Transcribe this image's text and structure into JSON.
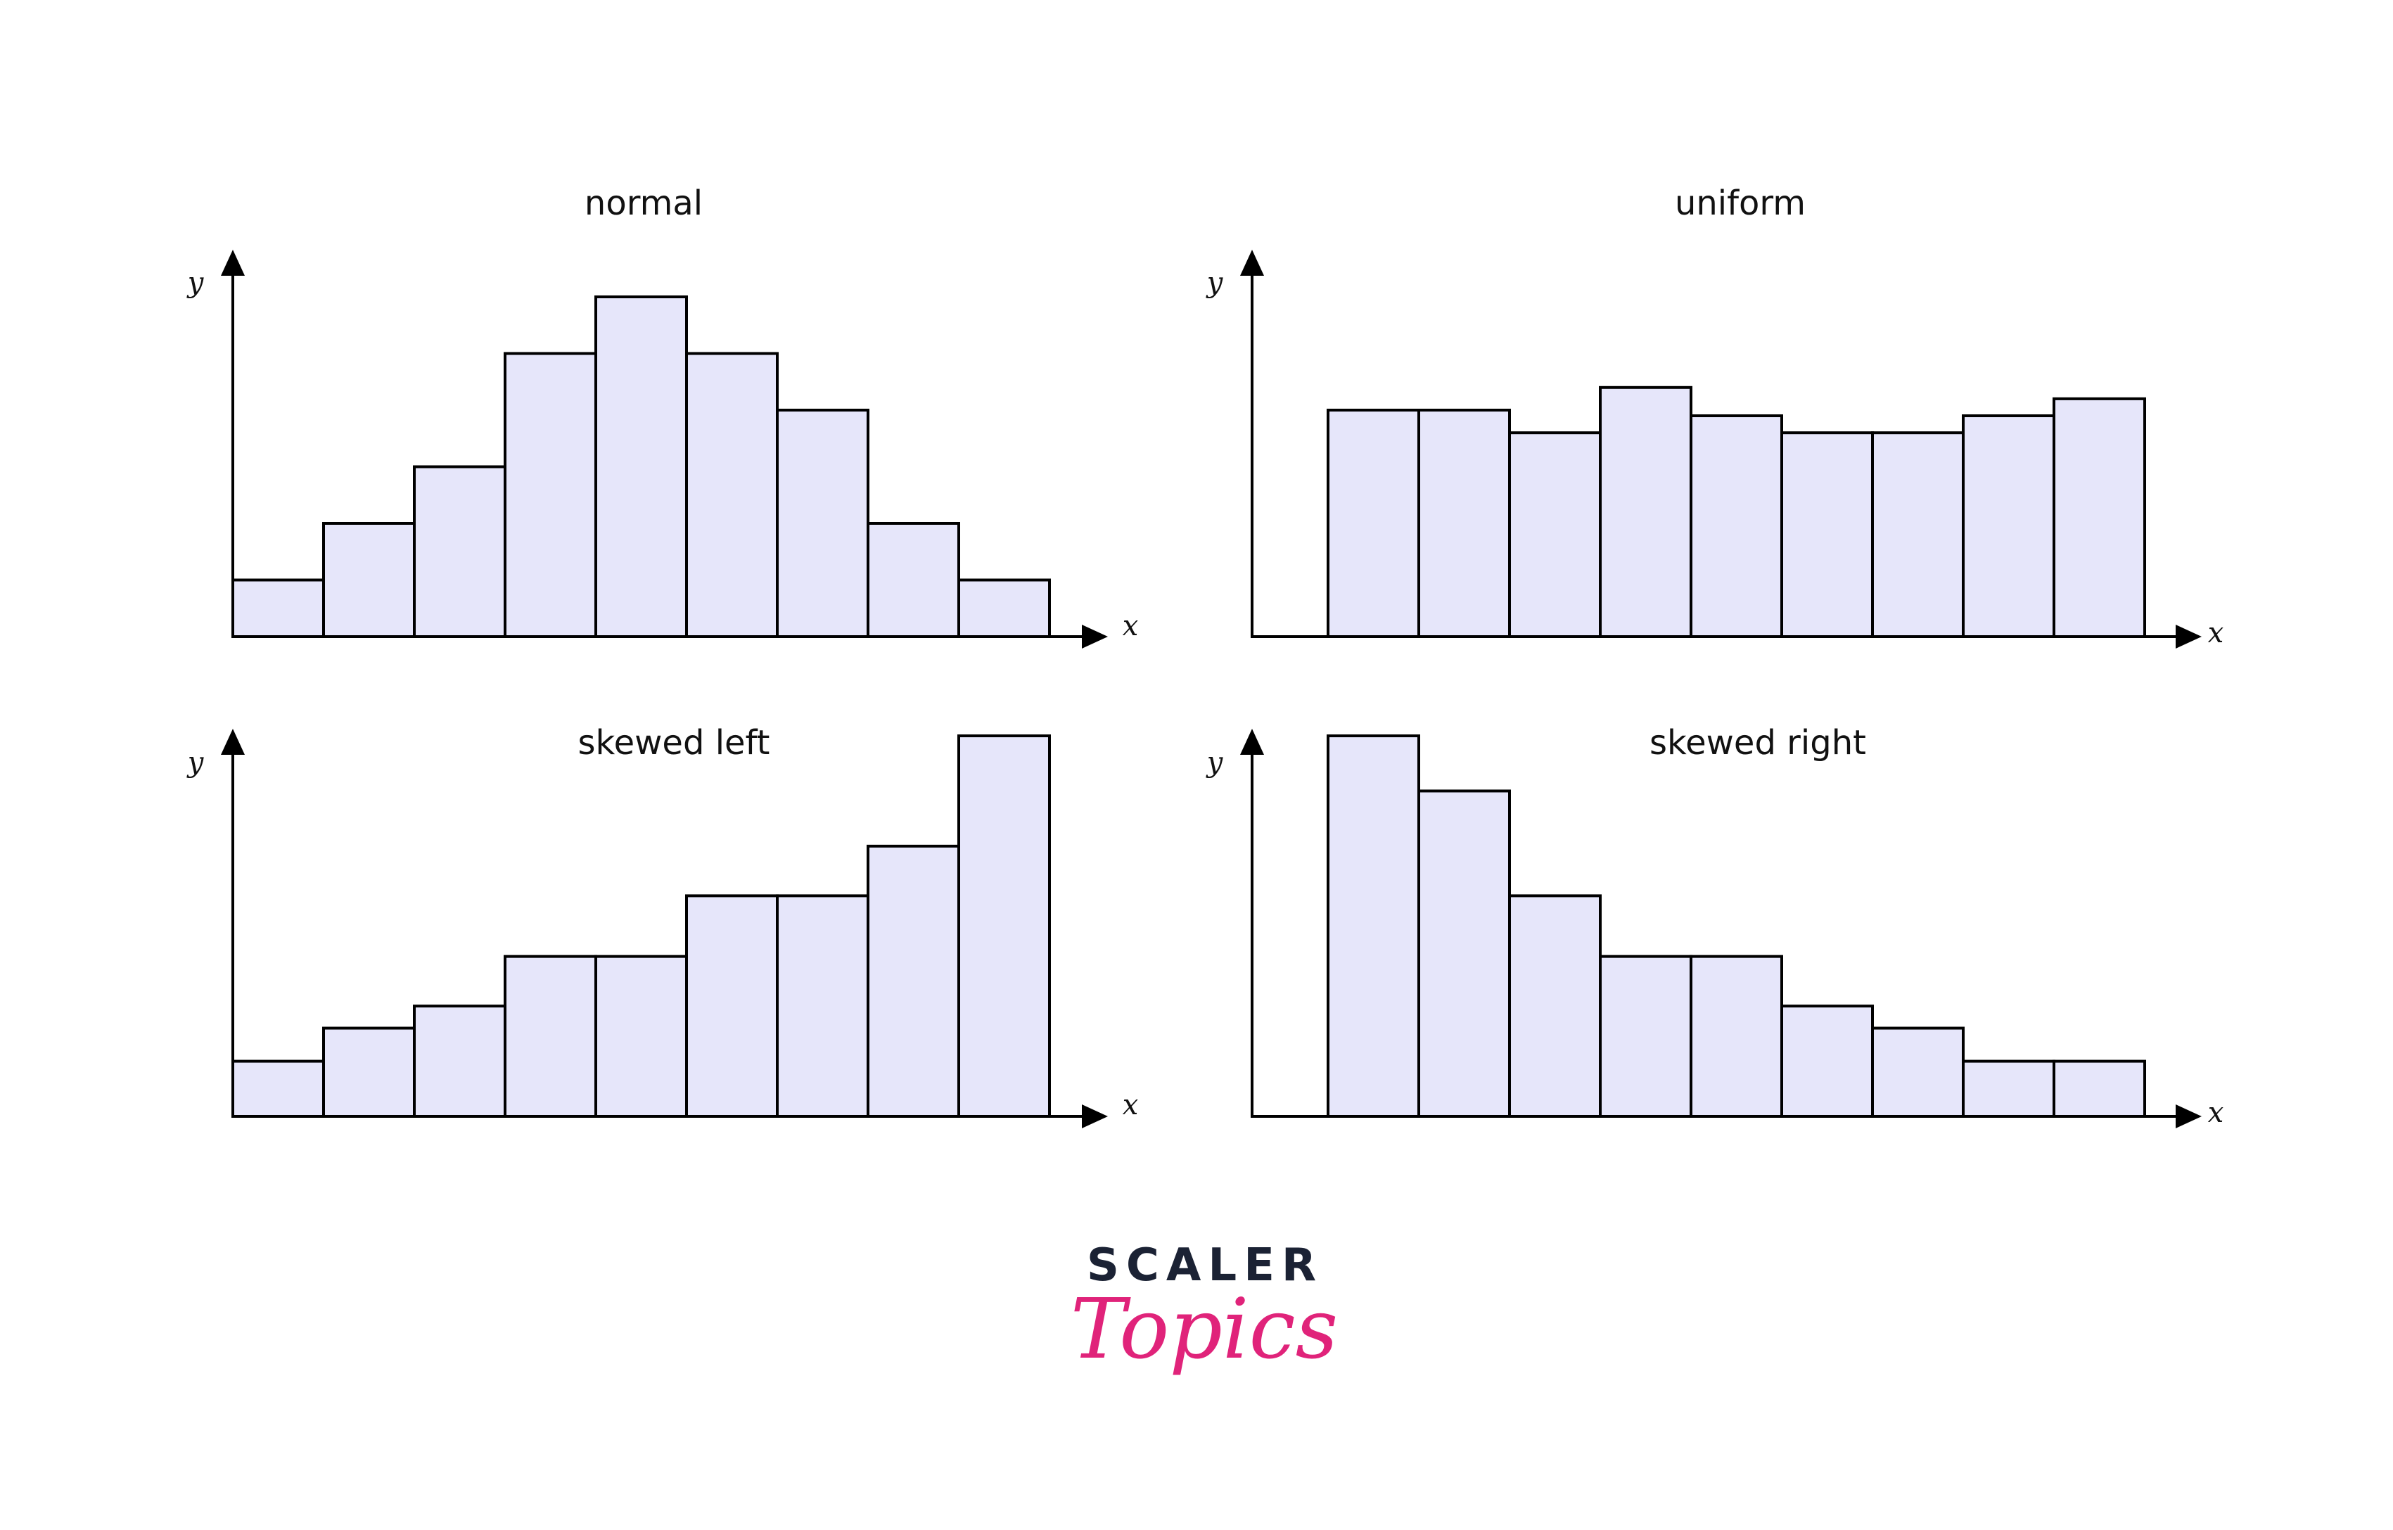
{
  "colors": {
    "bar_fill": "#e6e6fa",
    "bar_stroke": "#000000",
    "axis": "#000000",
    "text": "#111111",
    "logo_dark": "#1b2234",
    "logo_pink": "#e0237a"
  },
  "chart_data": [
    {
      "type": "bar",
      "title": "normal",
      "xlabel": "x",
      "ylabel": "y",
      "values": [
        1,
        2,
        3,
        5,
        6,
        5,
        4,
        2,
        1
      ],
      "ylim": [
        0,
        6.5
      ]
    },
    {
      "type": "bar",
      "title": "uniform",
      "xlabel": "x",
      "ylabel": "y",
      "values": [
        4,
        4,
        3.6,
        4.4,
        3.9,
        3.6,
        3.6,
        3.9,
        4.2
      ],
      "ylim": [
        0,
        6.5
      ]
    },
    {
      "type": "bar",
      "title": "skewed left",
      "xlabel": "x",
      "ylabel": "y",
      "values": [
        1,
        1.6,
        2,
        2.9,
        2.9,
        4,
        4,
        4.9,
        6.9
      ],
      "ylim": [
        0,
        7.5
      ]
    },
    {
      "type": "bar",
      "title": "skewed right",
      "xlabel": "x",
      "ylabel": "y",
      "values": [
        6.9,
        5.9,
        4,
        2.9,
        2.9,
        2,
        1.6,
        1,
        1
      ],
      "ylim": [
        0,
        7.5
      ]
    }
  ],
  "logo": {
    "word1": "SCALER",
    "word2": "Topics"
  }
}
